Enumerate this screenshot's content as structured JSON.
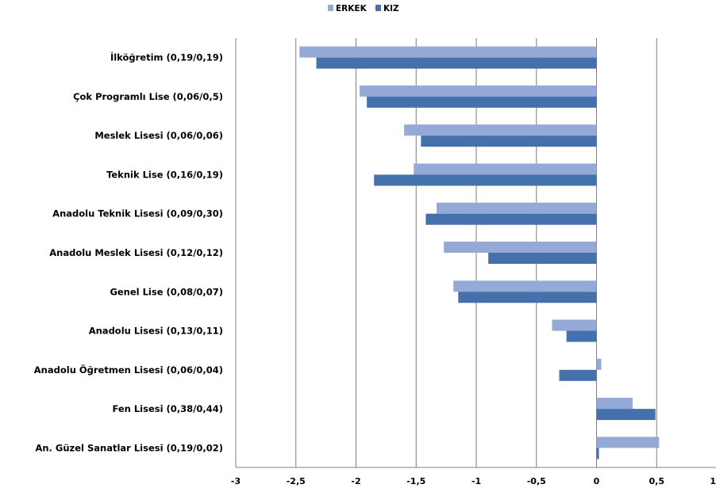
{
  "chart_data": {
    "type": "bar",
    "orientation": "horizontal",
    "categories": [
      "İlköğretim (0,19/0,19)",
      "Çok Programlı Lise (0,06/0,5)",
      "Meslek Lisesi (0,06/0,06)",
      "Teknik Lise (0,16/0,19)",
      "Anadolu Teknik Lisesi (0,09/0,30)",
      "Anadolu Meslek Lisesi (0,12/0,12)",
      "Genel Lise (0,08/0,07)",
      "Anadolu Lisesi (0,13/0,11)",
      "Anadolu Öğretmen Lisesi (0,06/0,04)",
      "Fen Lisesi (0,38/0,44)",
      "An. Güzel Sanatlar Lisesi (0,19/0,02)"
    ],
    "series": [
      {
        "name": "ERKEK",
        "color": "#95A9D6",
        "values": [
          -2.47,
          -1.97,
          -1.6,
          -1.52,
          -1.33,
          -1.27,
          -1.19,
          -0.37,
          0.04,
          0.3,
          0.52
        ]
      },
      {
        "name": "KIZ",
        "color": "#4470AC",
        "values": [
          -2.33,
          -1.91,
          -1.46,
          -1.85,
          -1.42,
          -0.9,
          -1.15,
          -0.25,
          -0.31,
          0.49,
          0.02
        ]
      }
    ],
    "xlim": [
      -3,
      1
    ],
    "xticks": [
      "-3",
      "-2,5",
      "-2",
      "-1,5",
      "-1",
      "-0,5",
      "0",
      "0,5",
      "1"
    ],
    "grid": true,
    "legend_position": "top-center"
  }
}
